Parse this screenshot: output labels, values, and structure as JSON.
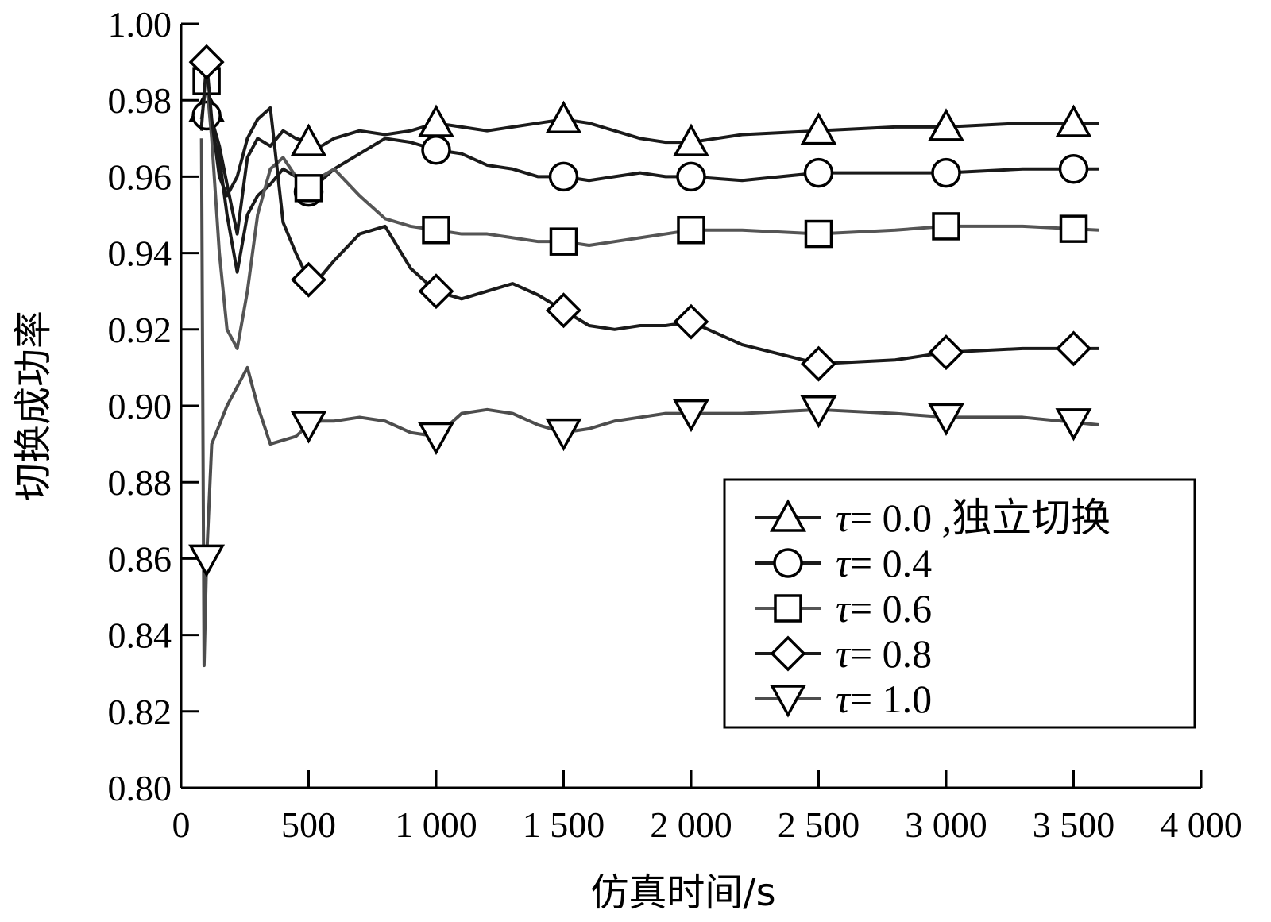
{
  "chart_data": {
    "type": "line",
    "xlabel": "仿真时间/s",
    "ylabel": "切换成功率",
    "xlim": [
      0,
      4000
    ],
    "ylim": [
      0.8,
      1.0
    ],
    "x_ticks": [
      "0",
      "500",
      "1 000",
      "1 500",
      "2 000",
      "2 500",
      "3 000",
      "3 500",
      "4 000"
    ],
    "y_ticks": [
      "0.80",
      "0.82",
      "0.84",
      "0.86",
      "0.88",
      "0.90",
      "0.92",
      "0.94",
      "0.96",
      "0.98",
      "1.00"
    ],
    "grid": false,
    "legend_position": "lower-right",
    "series": [
      {
        "name": "τ= 0.0 ,独立切换",
        "label_sym": "τ",
        "label_rest": "= 0.0 ,独立切换",
        "marker": "triangle-up",
        "color": "#1a1a1a",
        "x": [
          80,
          100,
          120,
          150,
          180,
          220,
          260,
          300,
          350,
          400,
          450,
          500,
          550,
          600,
          700,
          800,
          900,
          1000,
          1100,
          1200,
          1300,
          1400,
          1500,
          1600,
          1700,
          1800,
          1900,
          2000,
          2200,
          2500,
          2800,
          3000,
          3300,
          3600
        ],
        "y": [
          0.972,
          0.978,
          0.975,
          0.968,
          0.958,
          0.945,
          0.965,
          0.97,
          0.968,
          0.972,
          0.97,
          0.969,
          0.968,
          0.97,
          0.972,
          0.971,
          0.972,
          0.974,
          0.973,
          0.972,
          0.973,
          0.974,
          0.975,
          0.974,
          0.972,
          0.97,
          0.969,
          0.969,
          0.971,
          0.972,
          0.973,
          0.973,
          0.974,
          0.974
        ]
      },
      {
        "name": "τ= 0.4",
        "label_sym": "τ",
        "label_rest": "= 0.4",
        "marker": "circle",
        "color": "#1a1a1a",
        "x": [
          80,
          100,
          120,
          150,
          180,
          220,
          260,
          300,
          350,
          400,
          450,
          500,
          600,
          700,
          800,
          900,
          1000,
          1100,
          1200,
          1300,
          1400,
          1500,
          1600,
          1700,
          1800,
          1900,
          2000,
          2200,
          2500,
          2800,
          3000,
          3300,
          3600
        ],
        "y": [
          0.974,
          0.976,
          0.972,
          0.965,
          0.95,
          0.935,
          0.95,
          0.955,
          0.958,
          0.962,
          0.96,
          0.956,
          0.962,
          0.966,
          0.97,
          0.969,
          0.967,
          0.966,
          0.963,
          0.962,
          0.96,
          0.96,
          0.959,
          0.96,
          0.961,
          0.96,
          0.96,
          0.959,
          0.961,
          0.961,
          0.961,
          0.962,
          0.962
        ]
      },
      {
        "name": "τ= 0.6",
        "label_sym": "τ",
        "label_rest": "= 0.6",
        "marker": "square",
        "color": "#555555",
        "x": [
          80,
          100,
          120,
          150,
          180,
          220,
          260,
          300,
          350,
          400,
          450,
          500,
          550,
          600,
          700,
          800,
          900,
          1000,
          1100,
          1200,
          1300,
          1400,
          1500,
          1600,
          1700,
          1800,
          1900,
          2000,
          2200,
          2500,
          2800,
          3000,
          3300,
          3600
        ],
        "y": [
          0.975,
          0.985,
          0.97,
          0.94,
          0.92,
          0.915,
          0.93,
          0.95,
          0.962,
          0.965,
          0.96,
          0.957,
          0.96,
          0.962,
          0.955,
          0.949,
          0.947,
          0.946,
          0.945,
          0.945,
          0.944,
          0.943,
          0.943,
          0.942,
          0.943,
          0.944,
          0.945,
          0.946,
          0.946,
          0.945,
          0.946,
          0.947,
          0.947,
          0.946
        ]
      },
      {
        "name": "τ= 0.8",
        "label_sym": "τ",
        "label_rest": "= 0.8",
        "marker": "diamond",
        "color": "#1a1a1a",
        "x": [
          80,
          100,
          120,
          150,
          180,
          220,
          260,
          300,
          350,
          380,
          400,
          450,
          500,
          550,
          600,
          700,
          800,
          900,
          1000,
          1100,
          1200,
          1300,
          1400,
          1500,
          1600,
          1700,
          1800,
          1900,
          2000,
          2200,
          2500,
          2800,
          3000,
          3300,
          3600
        ],
        "y": [
          0.973,
          0.99,
          0.975,
          0.96,
          0.955,
          0.96,
          0.97,
          0.975,
          0.978,
          0.96,
          0.948,
          0.94,
          0.933,
          0.934,
          0.938,
          0.945,
          0.947,
          0.936,
          0.93,
          0.928,
          0.93,
          0.932,
          0.929,
          0.925,
          0.921,
          0.92,
          0.921,
          0.921,
          0.922,
          0.916,
          0.911,
          0.912,
          0.914,
          0.915,
          0.915
        ]
      },
      {
        "name": "τ= 1.0",
        "label_sym": "τ",
        "label_rest": "= 1.0",
        "marker": "triangle-down",
        "color": "#4d4d4d",
        "x": [
          80,
          90,
          100,
          120,
          150,
          180,
          220,
          260,
          300,
          350,
          400,
          450,
          500,
          550,
          600,
          700,
          800,
          900,
          1000,
          1100,
          1200,
          1300,
          1400,
          1500,
          1600,
          1700,
          1800,
          1900,
          2000,
          2200,
          2500,
          2800,
          3000,
          3300,
          3600
        ],
        "y": [
          0.97,
          0.832,
          0.86,
          0.89,
          0.895,
          0.9,
          0.905,
          0.91,
          0.9,
          0.89,
          0.891,
          0.892,
          0.895,
          0.896,
          0.896,
          0.897,
          0.896,
          0.893,
          0.892,
          0.898,
          0.899,
          0.898,
          0.895,
          0.893,
          0.894,
          0.896,
          0.897,
          0.898,
          0.898,
          0.898,
          0.899,
          0.898,
          0.897,
          0.897,
          0.895
        ]
      }
    ]
  }
}
